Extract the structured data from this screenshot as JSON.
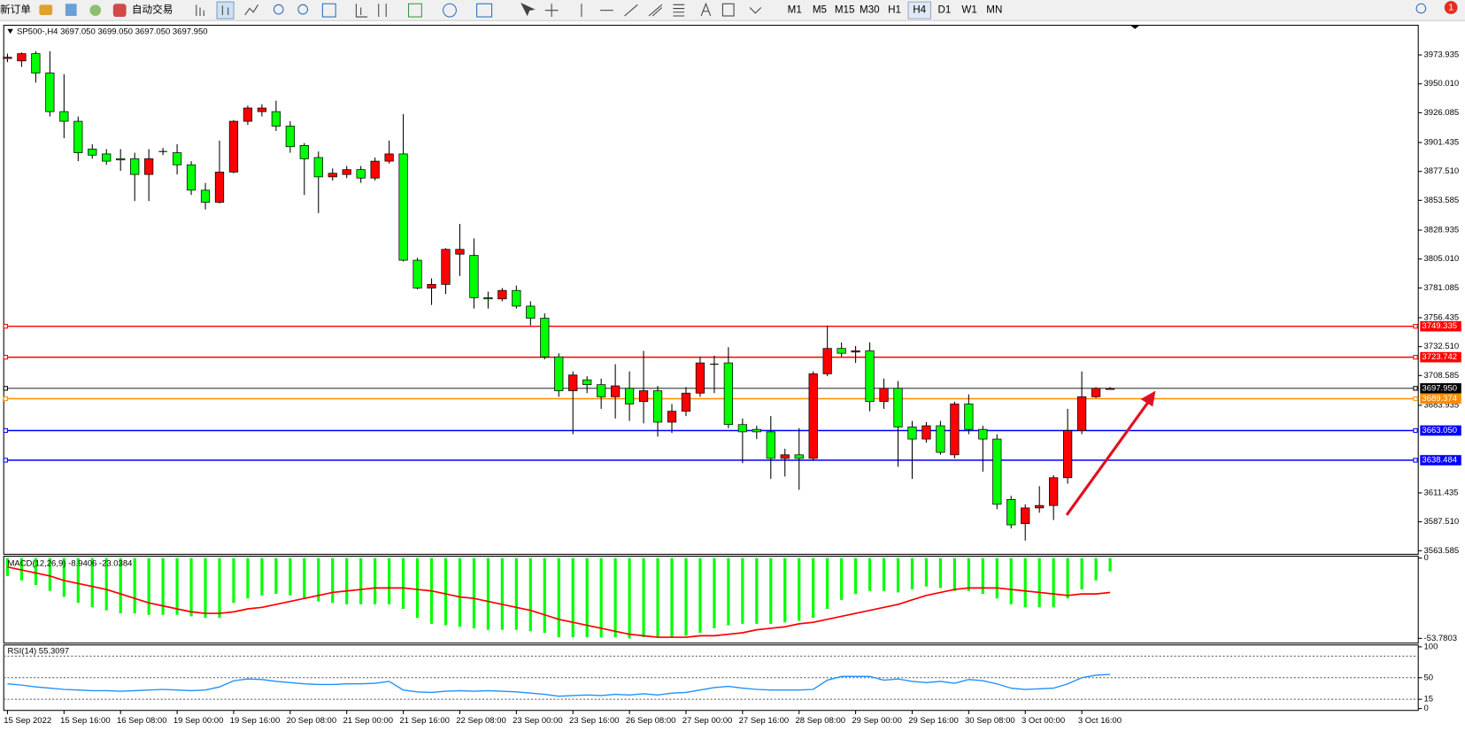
{
  "toolbar": {
    "new_order": "新订单",
    "auto_trading": "自动交易",
    "timeframes": [
      "M1",
      "M5",
      "M15",
      "M30",
      "H1",
      "H4",
      "D1",
      "W1",
      "MN"
    ],
    "notifications": "1"
  },
  "chart_data": [
    {
      "type": "candlestick",
      "title": "SP500-,H4 3697.050 3699.050 3697.050 3697.950",
      "categories": [
        "15 Sep 2022",
        null,
        null,
        null,
        "15 Sep 16:00",
        null,
        null,
        null,
        "16 Sep 08:00",
        null,
        null,
        null,
        "19 Sep 00:00",
        null,
        null,
        null,
        "19 Sep 16:00",
        null,
        null,
        null,
        "20 Sep 08:00",
        null,
        null,
        null,
        "21 Sep 00:00",
        null,
        null,
        null,
        "21 Sep 16:00",
        null,
        null,
        null,
        "22 Sep 08:00",
        null,
        null,
        null,
        "23 Sep 00:00",
        null,
        null,
        null,
        "23 Sep 16:00",
        null,
        null,
        null,
        "26 Sep 08:00",
        null,
        null,
        null,
        "27 Sep 00:00",
        null,
        null,
        null,
        "27 Sep 16:00",
        null,
        null,
        null,
        "28 Sep 08:00",
        null,
        null,
        null,
        "29 Sep 00:00",
        null,
        null,
        null,
        "29 Sep 16:00",
        null,
        null,
        null,
        "30 Sep 08:00",
        null,
        null,
        null,
        "3 Oct 00:00",
        null,
        null,
        null,
        "3 Oct 16:00",
        null,
        null
      ],
      "open": [
        3971,
        3969,
        3975,
        3959,
        3927,
        3919,
        3896,
        3892,
        3888,
        3888,
        3875,
        3894,
        3893,
        3883,
        3862,
        3852,
        3877,
        3919,
        3927,
        3927,
        3915,
        3899,
        3889,
        3873,
        3875,
        3879,
        3872,
        3886,
        3892,
        3804,
        3781,
        3784,
        3809,
        3808,
        3773,
        3772,
        3779,
        3766,
        3756,
        3724,
        3696,
        3705,
        3701,
        3691,
        3698,
        3687,
        3696,
        3670,
        3679,
        3694,
        3718,
        3719,
        3668,
        3664,
        3662,
        3640,
        3643,
        3640,
        3710,
        3731,
        3728,
        3729,
        3687,
        3698,
        3666,
        3656,
        3667,
        3643,
        3685,
        3664,
        3656,
        3606,
        3586,
        3599,
        3601,
        3624,
        3663,
        3691,
        3697.05
      ],
      "high": [
        3975,
        3976,
        3977,
        3977,
        3958,
        3923,
        3900,
        3896,
        3896,
        3893,
        3896,
        3897,
        3900,
        3886,
        3868,
        3903,
        3920,
        3932,
        3933,
        3936,
        3919,
        3901,
        3894,
        3880,
        3882,
        3882,
        3889,
        3903,
        3925,
        3806,
        3789,
        3814,
        3834,
        3822,
        3778,
        3781,
        3783,
        3770,
        3760,
        3727,
        3712,
        3708,
        3706,
        3718,
        3712,
        3729,
        3700,
        3685,
        3699,
        3724,
        3725,
        3732,
        3673,
        3667,
        3675,
        3648,
        3665,
        3712,
        3750,
        3736,
        3733,
        3736,
        3706,
        3704,
        3671,
        3670,
        3671,
        3687,
        3693,
        3667,
        3660,
        3609,
        3602,
        3617,
        3626,
        3681,
        3712,
        3699,
        3699.05
      ],
      "low": [
        3968,
        3964,
        3951,
        3923,
        3905,
        3886,
        3888,
        3883,
        3878,
        3853,
        3853,
        3891,
        3875,
        3858,
        3846,
        3851,
        3876,
        3916,
        3923,
        3911,
        3893,
        3858,
        3843,
        3870,
        3872,
        3868,
        3870,
        3884,
        3803,
        3780,
        3767,
        3776,
        3791,
        3764,
        3764,
        3770,
        3764,
        3750,
        3722,
        3691,
        3660,
        3694,
        3681,
        3673,
        3671,
        3669,
        3658,
        3661,
        3675,
        3691,
        3694,
        3665,
        3636,
        3656,
        3623,
        3625,
        3614,
        3638,
        3708,
        3724,
        3719,
        3679,
        3681,
        3633,
        3623,
        3653,
        3643,
        3640,
        3660,
        3629,
        3598,
        3582,
        3572,
        3595,
        3589,
        3619,
        3660,
        3690,
        3697.05
      ],
      "close": [
        3972,
        3975,
        3959,
        3927,
        3919,
        3893,
        3891,
        3886,
        3887,
        3875,
        3888,
        3894,
        3883,
        3862,
        3852,
        3877,
        3919,
        3930,
        3930,
        3915,
        3898,
        3888,
        3873,
        3876,
        3879,
        3872,
        3886,
        3892,
        3804,
        3781,
        3784,
        3813,
        3813,
        3773,
        3772,
        3779,
        3766,
        3756,
        3724,
        3696,
        3709,
        3701,
        3691,
        3700,
        3685,
        3696,
        3670,
        3679,
        3694,
        3719,
        3718,
        3668,
        3662,
        3662,
        3640,
        3643,
        3640,
        3710,
        3731,
        3727,
        3729,
        3687,
        3698,
        3666,
        3656,
        3667,
        3645,
        3685,
        3664,
        3656,
        3602,
        3585,
        3599,
        3601,
        3624,
        3663,
        3691,
        3698,
        3697.95
      ],
      "up_color": "#ff0000",
      "down_color": "#00ff00",
      "ylim": [
        3560.6,
        3997.7
      ],
      "yticks": [
        {
          "value": 3973.935,
          "label": "3973.935"
        },
        {
          "value": 3950.01,
          "label": "3950.010"
        },
        {
          "value": 3926.085,
          "label": "3926.085"
        },
        {
          "value": 3901.435,
          "label": "3901.435"
        },
        {
          "value": 3877.51,
          "label": "3877.510"
        },
        {
          "value": 3853.585,
          "label": "3853.585"
        },
        {
          "value": 3828.935,
          "label": "3828.935"
        },
        {
          "value": 3805.01,
          "label": "3805.010"
        },
        {
          "value": 3781.085,
          "label": "3781.085"
        },
        {
          "value": 3756.435,
          "label": "3756.435"
        },
        {
          "value": 3732.51,
          "label": "3732.510"
        },
        {
          "value": 3708.585,
          "label": "3708.585"
        },
        {
          "value": 3683.935,
          "label": "3683.935"
        },
        {
          "value": 3611.435,
          "label": "3611.435"
        },
        {
          "value": 3587.51,
          "label": "3587.510"
        },
        {
          "value": 3563.585,
          "label": "3563.585"
        }
      ],
      "levels": [
        {
          "value": 3749.335,
          "label": "3749.335",
          "color": "#ff0000"
        },
        {
          "value": 3723.742,
          "label": "3723.742",
          "color": "#ff0000"
        },
        {
          "value": 3697.95,
          "label": "3697.950",
          "color": "#000000"
        },
        {
          "value": 3689.374,
          "label": "3689.374",
          "color": "#ff8c00"
        },
        {
          "value": 3663.05,
          "label": "3663.050",
          "color": "#0000ff"
        },
        {
          "value": 3638.484,
          "label": "3638.484",
          "color": "#0000ff"
        }
      ]
    },
    {
      "type": "macd",
      "title": "MACD(12,26,9) -8.9406 -23.0384",
      "values": [
        -12,
        -15,
        -18,
        -22,
        -26,
        -30,
        -33,
        -35,
        -37,
        -37,
        -38,
        -38,
        -38,
        -39,
        -40,
        -40,
        -30,
        -27,
        -25,
        -24,
        -25,
        -27,
        -29,
        -30,
        -31,
        -31,
        -31,
        -31,
        -34,
        -40,
        -44,
        -45,
        -46,
        -47,
        -48,
        -48,
        -48,
        -49,
        -50,
        -53,
        -53,
        -53,
        -53,
        -53,
        -53.7803,
        -53,
        -53,
        -53,
        -52,
        -50,
        -47,
        -45,
        -44,
        -44,
        -44,
        -43,
        -42,
        -40,
        -34,
        -28,
        -24,
        -22,
        -22,
        -23,
        -21,
        -19,
        -20,
        -22,
        -22,
        -24,
        -27,
        -31,
        -33,
        -33,
        -33,
        -27,
        -21,
        -15,
        -8.9406
      ],
      "signal": [
        -6,
        -8,
        -10,
        -12,
        -15,
        -17,
        -19,
        -21,
        -24,
        -27,
        -30,
        -32,
        -34,
        -36,
        -37,
        -37,
        -36,
        -34,
        -33,
        -31,
        -29,
        -27,
        -25,
        -23,
        -22,
        -21,
        -20,
        -20,
        -20,
        -21,
        -22,
        -24,
        -26,
        -27,
        -29,
        -31,
        -33,
        -35,
        -38,
        -41,
        -43,
        -45,
        -47,
        -49,
        -51,
        -52,
        -53,
        -53,
        -53,
        -52,
        -52,
        -51,
        -50,
        -48,
        -47,
        -46,
        -44,
        -43,
        -41,
        -39,
        -37,
        -35,
        -33,
        -31,
        -28,
        -25,
        -23,
        -21,
        -20,
        -20,
        -20,
        -21,
        -22,
        -23,
        -24,
        -25,
        -24,
        -24,
        -23.0384
      ],
      "color": "#00ff00",
      "signal_color": "#ff0000",
      "ylim": [
        -53.7803,
        0
      ],
      "yticks": [
        0,
        -53.7803
      ]
    },
    {
      "type": "rsi",
      "title": "RSI(14) 55.3097",
      "values": [
        40,
        38,
        35,
        33,
        31,
        30,
        29,
        29,
        28,
        29,
        30,
        31,
        30,
        29,
        30,
        35,
        45,
        48,
        47,
        44,
        42,
        40,
        39,
        39,
        40,
        40,
        41,
        44,
        30,
        27,
        26,
        28,
        29,
        28,
        29,
        28,
        27,
        25,
        23,
        20,
        21,
        22,
        21,
        23,
        22,
        24,
        22,
        25,
        26,
        30,
        34,
        36,
        33,
        31,
        30,
        30,
        30,
        31,
        46,
        52,
        52,
        52,
        46,
        48,
        44,
        42,
        44,
        41,
        47,
        45,
        40,
        33,
        31,
        32,
        33,
        40,
        50,
        54,
        55.3097
      ],
      "color": "#1e90ff",
      "ylim": [
        0,
        100
      ],
      "yticks": [
        100,
        50,
        15,
        0
      ],
      "levels": [
        85,
        50,
        15
      ]
    }
  ]
}
